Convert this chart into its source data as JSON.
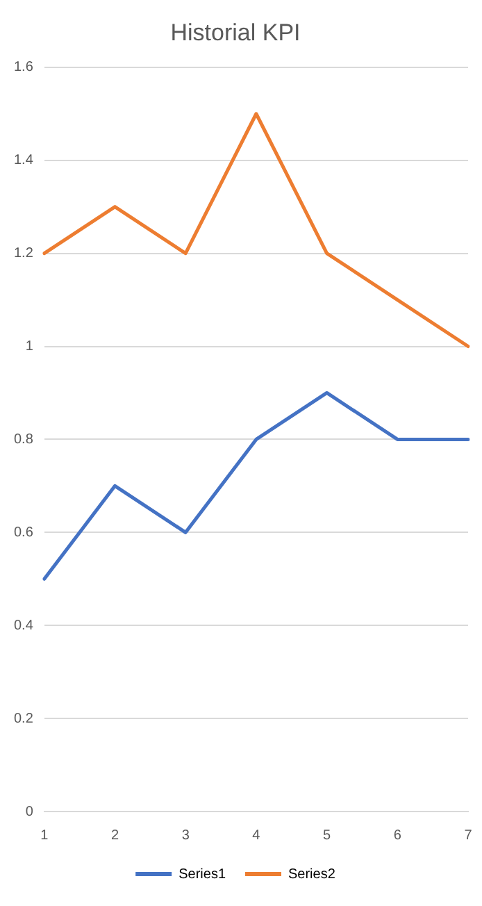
{
  "chart_data": {
    "type": "line",
    "title": "Historial KPI",
    "categories": [
      "1",
      "2",
      "3",
      "4",
      "5",
      "6",
      "7"
    ],
    "series": [
      {
        "name": "Series1",
        "color": "#4472c4",
        "values": [
          0.5,
          0.7,
          0.6,
          0.8,
          0.9,
          0.8,
          0.8
        ]
      },
      {
        "name": "Series2",
        "color": "#ed7d31",
        "values": [
          1.2,
          1.3,
          1.2,
          1.5,
          1.2,
          1.1,
          1.0
        ]
      }
    ],
    "ylim": [
      0,
      1.6
    ],
    "yticks": [
      0,
      0.2,
      0.4,
      0.6,
      0.8,
      1,
      1.2,
      1.4,
      1.6
    ],
    "grid": "y",
    "legend": "bottom",
    "marker": "none",
    "line_style": "solid"
  }
}
